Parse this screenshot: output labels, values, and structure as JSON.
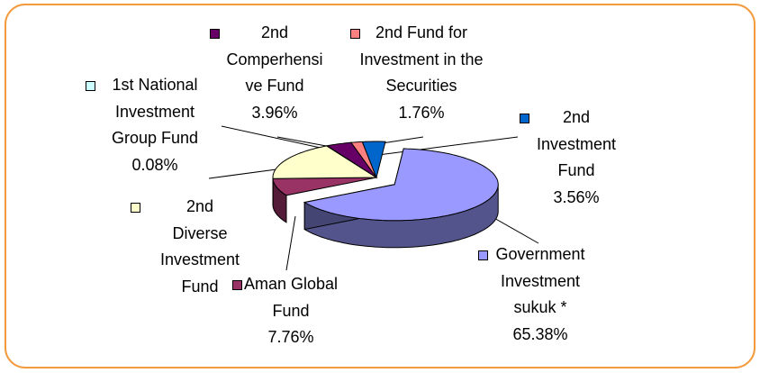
{
  "chart_data": {
    "type": "pie",
    "categories": [
      "Government Investment sukuk *",
      "Aman Global Fund",
      "2nd Diverse Investment Fund",
      "1st National Investment Group Fund",
      "2nd Comperhensive Fund",
      "2nd Fund for Investment in the Securities",
      "2nd Investment Fund"
    ],
    "values": [
      65.38,
      7.76,
      17.5,
      0.08,
      3.96,
      1.76,
      3.56
    ],
    "value_labels": [
      "65.38%",
      "7.76%",
      null,
      "0.08%",
      "3.96%",
      "1.76%",
      "3.56%"
    ],
    "colors": [
      "#9999ff",
      "#993366",
      "#ffffcc",
      "#ccffff",
      "#660066",
      "#ff8080",
      "#0066cc"
    ],
    "three_d": true
  }
}
